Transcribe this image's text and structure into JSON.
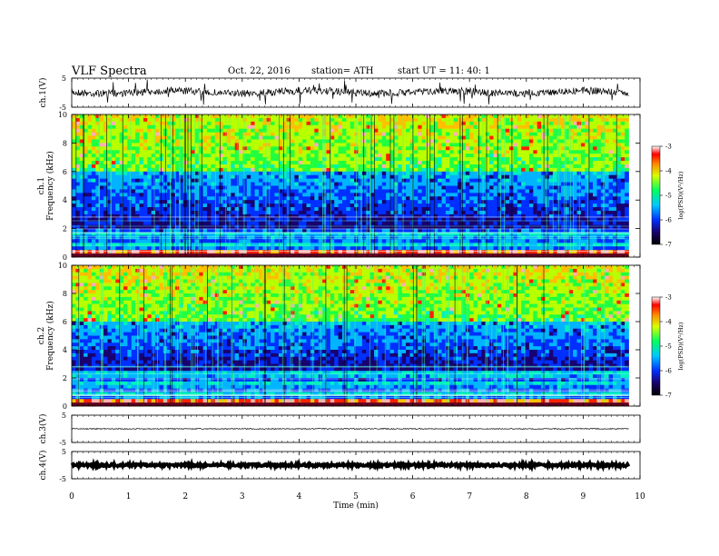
{
  "header": {
    "title": "VLF  Spectra",
    "date": "Oct. 22, 2016",
    "station": "station= ATH",
    "start": "start  UT =   11: 40: 1"
  },
  "chart_data": [
    {
      "type": "line",
      "panel": "ch1-waveform",
      "ylabel": "ch.1(V)",
      "ylim": [
        -5,
        5
      ],
      "yticks": [
        "5",
        "-5"
      ],
      "baseline_level": 0.2
    },
    {
      "type": "heatmap",
      "panel": "ch1-spectrogram",
      "ylabel": "ch.1\nFrequency (kHz)",
      "ylabel_top": "ch.1",
      "ylabel_bottom": "Frequency  (kHz)",
      "ylim": [
        0,
        10
      ],
      "yticks": [
        "0",
        "2",
        "4",
        "6",
        "8",
        "10"
      ],
      "colorbar": {
        "label": "log(PSD)(V²/Hz)",
        "range": [
          -7,
          -3
        ],
        "ticks": [
          "-3",
          "-4",
          "-5",
          "-6",
          "-7"
        ]
      },
      "dark_band_khz": [
        2,
        6
      ]
    },
    {
      "type": "heatmap",
      "panel": "ch2-spectrogram",
      "ylabel_top": "ch.2",
      "ylabel_bottom": "Frequency  (kHz)",
      "ylim": [
        0,
        10
      ],
      "yticks": [
        "0",
        "2",
        "4",
        "6",
        "8",
        "10"
      ],
      "colorbar": {
        "label": "log(PSD)(V²/Hz)",
        "range": [
          -7,
          -3
        ],
        "ticks": [
          "-3",
          "-4",
          "-5",
          "-6",
          "-7"
        ]
      },
      "dark_band_khz": [
        2.5,
        6
      ]
    },
    {
      "type": "line",
      "panel": "ch3-waveform",
      "ylabel": "ch.3(V)",
      "ylim": [
        -5,
        5
      ],
      "yticks": [
        "5",
        "-5"
      ],
      "baseline_level": 0
    },
    {
      "type": "line",
      "panel": "ch4-waveform",
      "ylabel": "ch.4(V)",
      "ylim": [
        -5,
        5
      ],
      "yticks": [
        "5",
        "-5"
      ],
      "baseline_level": 0
    }
  ],
  "xaxis": {
    "label": "Time  (min)",
    "xlim": [
      0,
      10
    ],
    "ticks": [
      "0",
      "1",
      "2",
      "3",
      "4",
      "5",
      "6",
      "7",
      "8",
      "9",
      "10"
    ],
    "data_end_min": 9.8
  }
}
